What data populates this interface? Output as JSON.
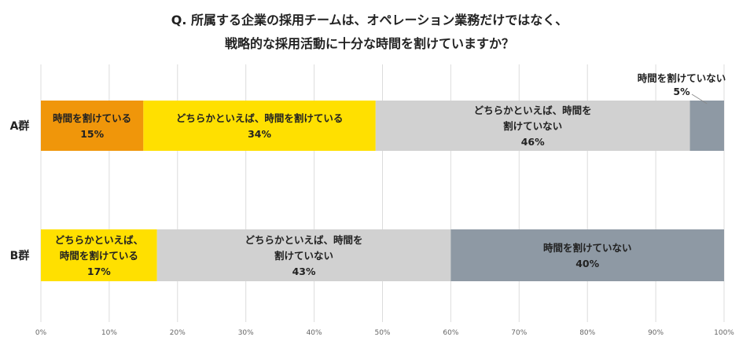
{
  "title": {
    "line1": "Q. 所属する企業の採用チームは、オペレーション業務だけではなく、",
    "line2": "戦略的な採用活動に十分な時間を割けていますか？"
  },
  "chart_data": {
    "type": "bar",
    "orientation": "horizontal",
    "stacked": true,
    "percent_axis": true,
    "xlim": [
      0,
      100
    ],
    "x_ticks": [
      "0%",
      "10%",
      "20%",
      "30%",
      "40%",
      "50%",
      "60%",
      "70%",
      "80%",
      "90%",
      "100%"
    ],
    "grid": "vertical",
    "legend": "none",
    "categories": [
      "A群",
      "B群"
    ],
    "groups": [
      {
        "name": "A群",
        "segments": [
          {
            "label_lines": [
              "時間を割けている"
            ],
            "value": 15,
            "value_text": "15%",
            "color": "#F0960A"
          },
          {
            "label_lines": [
              "どちらかといえば、時間を割けている"
            ],
            "value": 34,
            "value_text": "34%",
            "color": "#FFE000"
          },
          {
            "label_lines": [
              "どちらかといえば、時間を",
              "割けていない"
            ],
            "value": 46,
            "value_text": "46%",
            "color": "#D1D1D1"
          },
          {
            "label_lines": [
              "時間を割けていない"
            ],
            "value": 5,
            "value_text": "5%",
            "color": "#8E99A4",
            "label_outside": true
          }
        ]
      },
      {
        "name": "B群",
        "segments": [
          {
            "label_lines": [
              "どちらかといえば、",
              "時間を割けている"
            ],
            "value": 17,
            "value_text": "17%",
            "color": "#FFE000"
          },
          {
            "label_lines": [
              "どちらかといえば、時間を",
              "割けていない"
            ],
            "value": 43,
            "value_text": "43%",
            "color": "#D1D1D1"
          },
          {
            "label_lines": [
              "時間を割けていない"
            ],
            "value": 40,
            "value_text": "40%",
            "color": "#8E99A4"
          }
        ]
      }
    ]
  }
}
